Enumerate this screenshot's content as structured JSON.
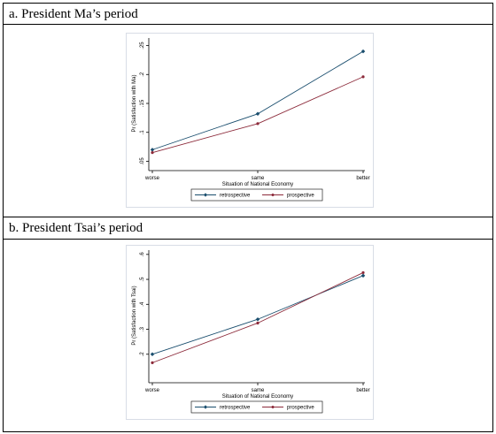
{
  "panels": [
    {
      "heading": "a. President Ma’s period"
    },
    {
      "heading": "b. President Tsai’s period"
    }
  ],
  "colors": {
    "retrospective": "#1a4e6e",
    "prospective": "#8c2a3a"
  },
  "chart_data": [
    {
      "type": "line",
      "title": "",
      "xlabel": "Situation of National Economy",
      "ylabel": "Pr (Satisfaction with Ma)",
      "categories": [
        "worse",
        "same",
        "better"
      ],
      "ylim": [
        0.04,
        0.26
      ],
      "yticks": [
        0.05,
        0.1,
        0.15,
        0.2,
        0.25
      ],
      "ytick_labels": [
        ".05",
        ".1",
        ".15",
        ".2",
        ".25"
      ],
      "series": [
        {
          "name": "retrospective",
          "values": [
            0.07,
            0.132,
            0.24
          ]
        },
        {
          "name": "prospective",
          "values": [
            0.065,
            0.115,
            0.196
          ]
        }
      ],
      "legend": "bottom",
      "grid": false
    },
    {
      "type": "line",
      "title": "",
      "xlabel": "Situation of National Economy",
      "ylabel": "Pr (Satisfaction with Tsai)",
      "categories": [
        "worse",
        "same",
        "better"
      ],
      "ylim": [
        0.1,
        0.61
      ],
      "yticks": [
        0.2,
        0.3,
        0.4,
        0.5,
        0.6
      ],
      "ytick_labels": [
        ".2",
        ".3",
        ".4",
        ".5",
        ".6"
      ],
      "series": [
        {
          "name": "retrospective",
          "values": [
            0.2,
            0.34,
            0.515
          ]
        },
        {
          "name": "prospective",
          "values": [
            0.166,
            0.325,
            0.527
          ]
        }
      ],
      "legend": "bottom",
      "grid": false
    }
  ]
}
